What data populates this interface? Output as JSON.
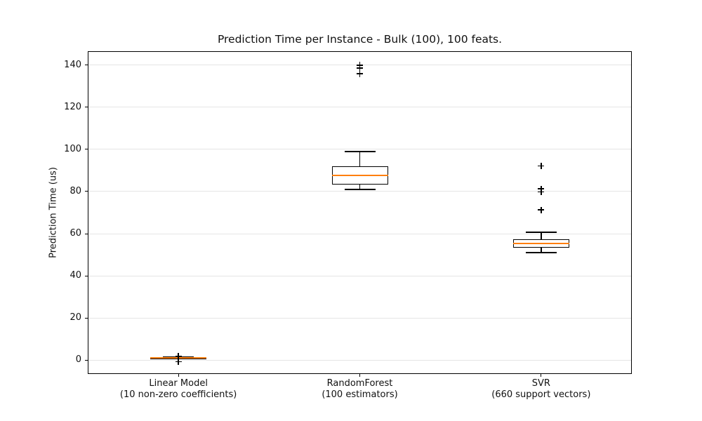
{
  "chart_data": {
    "type": "boxplot",
    "title": "Prediction Time per Instance - Bulk (100), 100 feats.",
    "xlabel": "",
    "ylabel": "Prediction Time (us)",
    "ylim": [
      -6.5,
      146.5
    ],
    "yticks": [
      0,
      20,
      40,
      60,
      80,
      100,
      120,
      140
    ],
    "grid": "horizontal",
    "legend": "none",
    "colors": {
      "median": "#ff7f0e",
      "box_edge": "#000000",
      "whisker": "#000000",
      "flier": "#000000",
      "grid": "#e5e5e5",
      "background": "#ffffff"
    },
    "categories": [
      {
        "line1": "Linear Model",
        "line2": "(10 non-zero coefficients)"
      },
      {
        "line1": "RandomForest",
        "line2": "(100 estimators)"
      },
      {
        "line1": "SVR",
        "line2": "(660 support vectors)"
      }
    ],
    "series": [
      {
        "name": "Linear Model (10 non-zero coefficients)",
        "whisker_low": 0.6,
        "q1": 0.9,
        "median": 1.0,
        "q3": 1.2,
        "whisker_high": 1.4,
        "fliers": [
          2.0,
          -0.7
        ]
      },
      {
        "name": "RandomForest (100 estimators)",
        "whisker_low": 81,
        "q1": 83.2,
        "median": 87.5,
        "q3": 92,
        "whisker_high": 99,
        "fliers": [
          135.8,
          138.6,
          139.9
        ]
      },
      {
        "name": "SVR (660 support vectors)",
        "whisker_low": 51,
        "q1": 53.3,
        "median": 55.3,
        "q3": 57.2,
        "whisker_high": 60.7,
        "fliers": [
          71.3,
          79.8,
          81.3,
          92.2
        ]
      }
    ]
  }
}
